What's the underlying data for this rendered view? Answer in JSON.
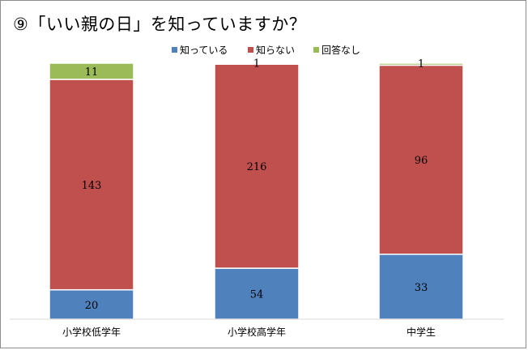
{
  "chart_data": {
    "type": "bar",
    "stacked": true,
    "title": "⑨「いい親の日」を知っていますか？",
    "categories": [
      "小学校低学年",
      "小学校高学年",
      "中学生"
    ],
    "series": [
      {
        "name": "知っている",
        "values": [
          20,
          54,
          33
        ],
        "color": "#4f81bd"
      },
      {
        "name": "知らない",
        "values": [
          143,
          216,
          96
        ],
        "color": "#c0504d"
      },
      {
        "name": "回答なし",
        "values": [
          11,
          1,
          1
        ],
        "color": "#9bbb59"
      }
    ],
    "normalized": true,
    "legend_position": "top",
    "grid": false,
    "xlabel": "",
    "ylabel": ""
  }
}
